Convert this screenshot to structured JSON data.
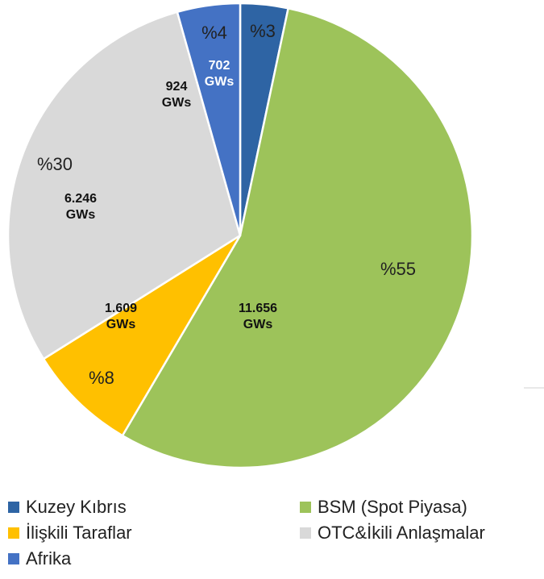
{
  "chart_data": {
    "type": "pie",
    "categories": [
      "Kuzey Kıbrıs",
      "BSM (Spot Piyasa)",
      "İlişkili Taraflar",
      "OTC&İkili Anlaşmalar",
      "Afrika"
    ],
    "values": [
      702,
      11656,
      1609,
      6246,
      924
    ],
    "value_labels": [
      "702 GWs",
      "11.656 GWs",
      "1.609 GWs",
      "6.246 GWs",
      "924 GWs"
    ],
    "percent_labels": [
      "%3",
      "%55",
      "%8",
      "%30",
      "%4"
    ],
    "colors": [
      "#2e64a4",
      "#9dc35a",
      "#ffc000",
      "#d9d9d9",
      "#4472c4"
    ],
    "legend": "bottom"
  }
}
